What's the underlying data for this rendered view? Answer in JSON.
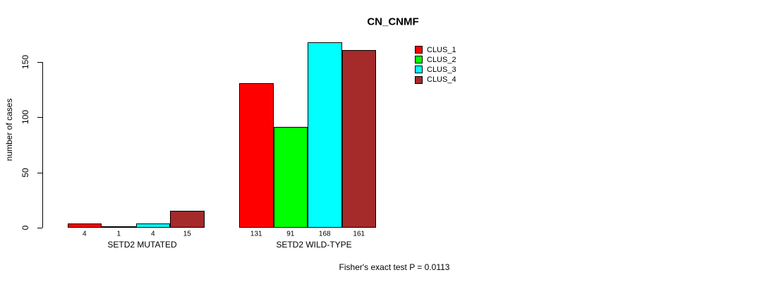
{
  "chart_data": {
    "type": "bar",
    "title": "CN_CNMF",
    "xlabel": "",
    "ylabel": "number of cases",
    "ylim": [
      0,
      150
    ],
    "yticks": [
      0,
      50,
      100,
      150
    ],
    "grid": false,
    "legend_position": "top-right",
    "categories": [
      "SETD2 MUTATED",
      "SETD2 WILD-TYPE"
    ],
    "series": [
      {
        "name": "CLUS_1",
        "color": "#FF0000",
        "values": [
          4,
          131
        ]
      },
      {
        "name": "CLUS_2",
        "color": "#00FF00",
        "values": [
          1,
          91
        ]
      },
      {
        "name": "CLUS_3",
        "color": "#00FFFF",
        "values": [
          4,
          168
        ]
      },
      {
        "name": "CLUS_4",
        "color": "#A52A2A",
        "values": [
          15,
          161
        ]
      }
    ],
    "bar_value_labels": [
      [
        4,
        1,
        4,
        15
      ],
      [
        131,
        91,
        168,
        161
      ]
    ],
    "annotation": "Fisher's exact test P = 0.0113"
  }
}
